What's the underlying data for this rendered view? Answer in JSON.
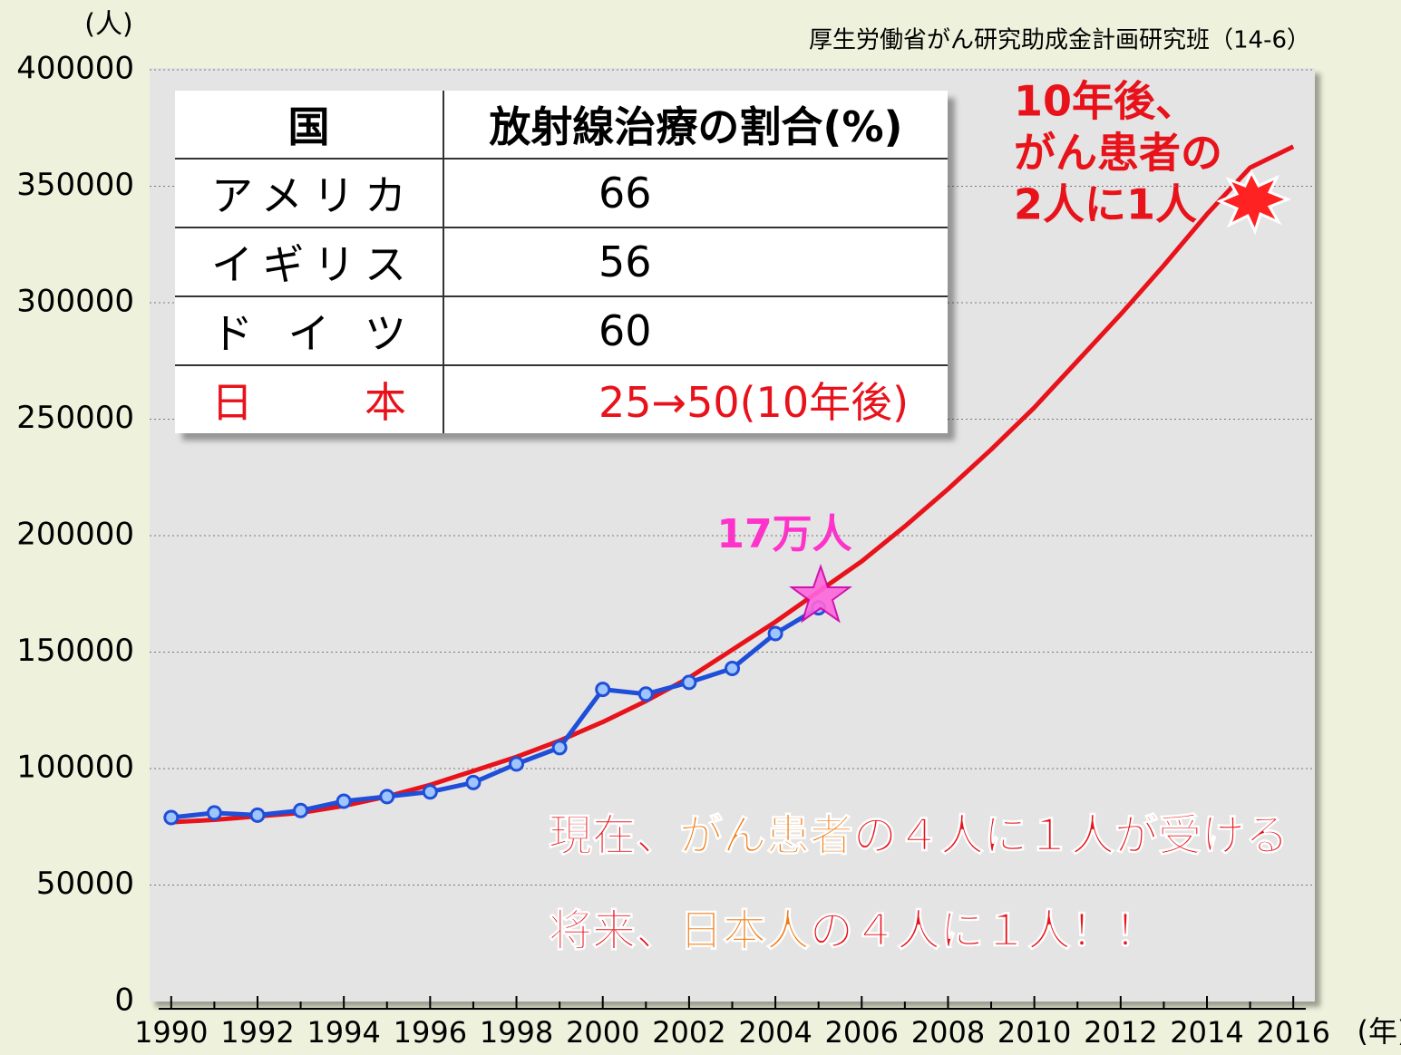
{
  "chart_data": {
    "type": "line",
    "source": "厚生労働省がん研究助成金計画研究班（14-6）",
    "y_unit": "(人)",
    "x_unit": "(年)",
    "xlim": [
      1989.5,
      2016.5
    ],
    "xticks": [
      1990,
      1992,
      1994,
      1996,
      1998,
      2000,
      2002,
      2004,
      2006,
      2008,
      2010,
      2012,
      2014,
      2016
    ],
    "ylim": [
      0,
      400000
    ],
    "yticks": [
      0,
      50000,
      100000,
      150000,
      200000,
      250000,
      300000,
      350000,
      400000
    ],
    "grid": true,
    "series": [
      {
        "color": "#e8121b",
        "marker": false,
        "x": [
          1990,
          1991,
          1992,
          1993,
          1994,
          1995,
          1996,
          1997,
          1998,
          1999,
          2000,
          2001,
          2002,
          2003,
          2004,
          2005,
          2006,
          2007,
          2008,
          2009,
          2010,
          2011,
          2012,
          2013,
          2014,
          2015,
          2016
        ],
        "values": [
          77000,
          78000,
          79500,
          81000,
          84000,
          88000,
          93000,
          99000,
          105000,
          112000,
          120000,
          129000,
          139000,
          151000,
          163000,
          176000,
          189000,
          204000,
          220000,
          237000,
          255000,
          275000,
          295000,
          316000,
          338000,
          358000,
          367000
        ]
      },
      {
        "color": "#1f4fd8",
        "marker": true,
        "x": [
          1990,
          1991,
          1992,
          1993,
          1994,
          1995,
          1996,
          1997,
          1998,
          1999,
          2000,
          2001,
          2002,
          2003,
          2004,
          2005
        ],
        "values": [
          79000,
          81000,
          80000,
          82000,
          86000,
          88000,
          90000,
          94000,
          102000,
          109000,
          134000,
          132000,
          137000,
          143000,
          158000,
          169000
        ]
      }
    ],
    "annotations": {
      "future": [
        "10年後、",
        "がん患者の",
        "2人に1人"
      ],
      "current_count": "17万人",
      "line1": [
        "現在、",
        "がん患者",
        "の４人に１人が受ける"
      ],
      "line2": [
        "将来、",
        "日本人",
        "の４人に１人！！"
      ]
    },
    "table": {
      "header": [
        "国",
        "放射線治療の割合(%)"
      ],
      "rows": [
        [
          "アメリカ",
          "66"
        ],
        [
          "イギリス",
          "56"
        ],
        [
          "ドイツ",
          "60"
        ],
        [
          "日本",
          "25→50(10年後)"
        ]
      ]
    }
  }
}
